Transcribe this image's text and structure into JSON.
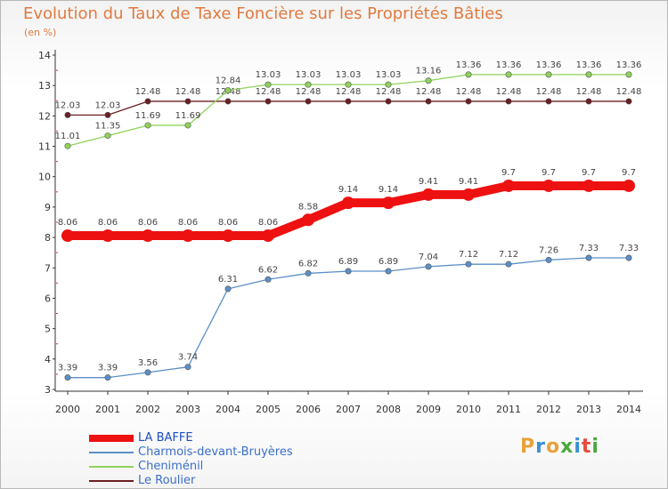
{
  "header": {
    "title": "Evolution du Taux de Taxe Foncière sur les Propriétés Bâties",
    "subtitle": "(en %)"
  },
  "logo": {
    "text": "Proxiti",
    "letters": [
      "P",
      "r",
      "o",
      "x",
      "i",
      "t",
      "i"
    ],
    "colors": [
      "#e8a23a",
      "#3a8fd6",
      "#e8a23a",
      "#4aa83f",
      "#3a8fd6",
      "#e84a3a",
      "#4aa83f"
    ]
  },
  "chart_data": {
    "type": "line",
    "title": "Evolution du Taux de Taxe Foncière sur les Propriétés Bâties",
    "ylabel": "(en %)",
    "xlabel": "",
    "ylim": [
      3,
      14
    ],
    "yticks": [
      3,
      4,
      5,
      6,
      7,
      8,
      9,
      10,
      11,
      12,
      13,
      14
    ],
    "x": [
      "2000",
      "2001",
      "2002",
      "2003",
      "2004",
      "2005",
      "2006",
      "2007",
      "2008",
      "2009",
      "2010",
      "2011",
      "2012",
      "2013",
      "2014"
    ],
    "grid": false,
    "legend_position": "bottom-left",
    "series": [
      {
        "name": "Le Roulier",
        "color": "#6b1f24",
        "values": [
          12.03,
          12.03,
          12.48,
          12.48,
          12.48,
          12.48,
          12.48,
          12.48,
          12.48,
          12.48,
          12.48,
          12.48,
          12.48,
          12.48,
          12.48
        ],
        "labels": [
          "12.03",
          "12.03",
          "12.48",
          "12.48",
          "12.48",
          "12.48",
          "12.48",
          "12.48",
          "12.48",
          "12.48",
          "12.48",
          "12.48",
          "12.48",
          "12.48",
          "12.48"
        ]
      },
      {
        "name": "Cheniménil",
        "color": "#8fd35a",
        "values": [
          11.01,
          11.35,
          11.69,
          11.69,
          12.84,
          13.03,
          13.03,
          13.03,
          13.03,
          13.16,
          13.36,
          13.36,
          13.36,
          13.36,
          13.36
        ],
        "labels": [
          "11.01",
          "11.35",
          "11.69",
          "11.69",
          "12.84",
          "13.03",
          "13.03",
          "13.03",
          "13.03",
          "13.16",
          "13.36",
          "13.36",
          "13.36",
          "13.36",
          "13.36"
        ]
      },
      {
        "name": "Charmois-devant-Bruyères",
        "color": "#5b8fc7",
        "values": [
          3.39,
          3.39,
          3.56,
          3.74,
          6.31,
          6.62,
          6.82,
          6.89,
          6.89,
          7.04,
          7.12,
          7.12,
          7.26,
          7.33,
          7.33
        ],
        "labels": [
          "3.39",
          "3.39",
          "3.56",
          "3.74",
          "6.31",
          "6.62",
          "6.82",
          "6.89",
          "6.89",
          "7.04",
          "7.12",
          "7.12",
          "7.26",
          "7.33",
          "7.33"
        ]
      },
      {
        "name": "LA BAFFE",
        "color": "#ee1111",
        "values": [
          8.06,
          8.06,
          8.06,
          8.06,
          8.06,
          8.06,
          8.58,
          9.14,
          9.14,
          9.41,
          9.41,
          9.7,
          9.7,
          9.7,
          9.7
        ],
        "labels": [
          "8.06",
          "8.06",
          "8.06",
          "8.06",
          "8.06",
          "8.06",
          "8.58",
          "9.14",
          "9.14",
          "9.41",
          "9.41",
          "9.7",
          "9.7",
          "9.7",
          "9.7"
        ]
      }
    ],
    "legend": [
      "LA BAFFE",
      "Charmois-devant-Bruyères",
      "Cheniménil",
      "Le Roulier"
    ]
  }
}
